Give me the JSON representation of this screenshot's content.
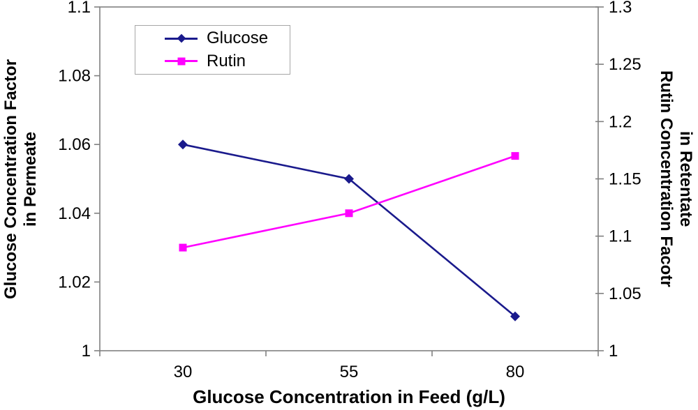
{
  "chart_data": {
    "type": "line",
    "categories": [
      "30",
      "55",
      "80"
    ],
    "xlabel": "Glucose Concentration in Feed (g/L)",
    "grid": false,
    "legend_position": "top-left-inside",
    "axis_color": "#808080",
    "text_color": "#000000",
    "background_color": "#ffffff",
    "axes": {
      "left": {
        "title_lines": [
          "Glucose Concentration Factor",
          "in Permeate"
        ],
        "min": 1.0,
        "max": 1.1,
        "tick_labels": [
          "1",
          "1.02",
          "1.04",
          "1.06",
          "1.08",
          "1.1"
        ]
      },
      "right": {
        "title_lines": [
          "Rutin Concentration Facotr",
          "in Retentate"
        ],
        "min": 1.0,
        "max": 1.3,
        "tick_labels": [
          "1",
          "1.05",
          "1.1",
          "1.15",
          "1.2",
          "1.25",
          "1.3"
        ]
      }
    },
    "series": [
      {
        "name": "Glucose",
        "axis": "left",
        "color": "#1a1a8c",
        "marker": "diamond",
        "values": [
          1.06,
          1.05,
          1.01
        ]
      },
      {
        "name": "Rutin",
        "axis": "right",
        "color": "#ff00ff",
        "marker": "square",
        "values": [
          1.09,
          1.12,
          1.17
        ]
      }
    ]
  }
}
